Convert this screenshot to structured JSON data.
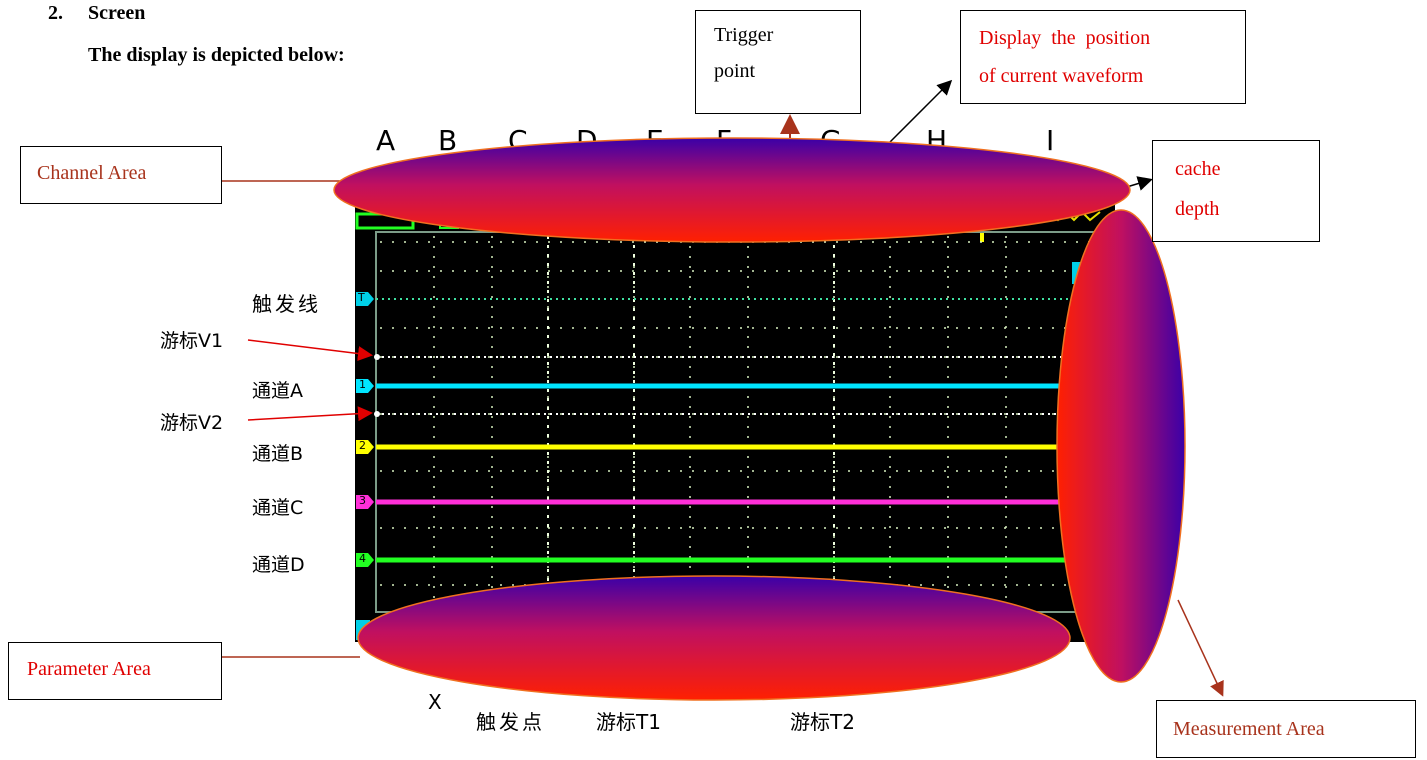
{
  "heading": {
    "number": "2.",
    "title": "Screen"
  },
  "subheading": "The display is depicted below:",
  "callouts": {
    "trigger_point": [
      "Trigger",
      "point"
    ],
    "display_position": [
      "Display  the  position",
      "of current waveform"
    ],
    "cache_depth": [
      "cache",
      "depth"
    ],
    "channel_area": "Channel Area",
    "parameter_area": "Parameter Area",
    "measurement_area": "Measurement Area"
  },
  "column_letters": [
    "A",
    "B",
    "C",
    "D",
    "E",
    "F",
    "G",
    "H",
    "I"
  ],
  "left_labels": {
    "trigger_line": "触发线",
    "cursor_v1": "游标V1",
    "channel_a": "通道A",
    "cursor_v2": "游标V2",
    "channel_b": "通道B",
    "channel_c": "通道C",
    "channel_d": "通道D"
  },
  "bottom_labels": {
    "x_mark": "X",
    "trigger_point": "触发点",
    "cursor_t1": "游标T1",
    "cursor_t2": "游标T2"
  },
  "markers": {
    "trigger": "T",
    "ch1": "1",
    "ch2": "2",
    "ch3": "3",
    "ch4": "4"
  },
  "colors": {
    "channel_a": "#00e5ff",
    "channel_b": "#ffff00",
    "channel_c": "#ff2fd8",
    "channel_d": "#22ff22",
    "screen_bg": "#000000",
    "grid": "#e8ffd0",
    "callout_red": "#e00000",
    "callout_brown": "#a8331c"
  }
}
